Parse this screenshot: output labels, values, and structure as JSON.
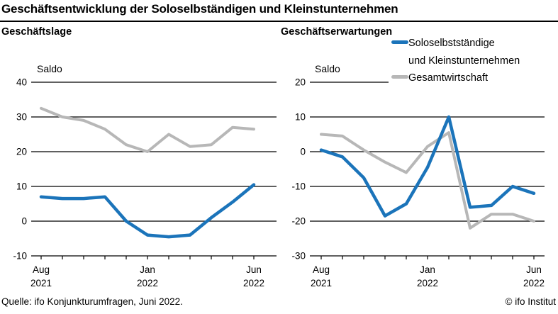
{
  "header": {
    "title": "Geschäftsentwicklung der Soloselbständigen und Kleinstunternehmen"
  },
  "legend": {
    "position": "top-right",
    "items": [
      {
        "line1": "Soloselbstständige",
        "line2": "und Kleinstunternehmen",
        "color": "#1b74ba"
      },
      {
        "line1": "Gesamtwirtschaft",
        "color": "#b7b7b7"
      }
    ]
  },
  "footer": {
    "source": "Quelle: ifo Konjunkturumfragen, Juni 2022.",
    "copyright": "© ifo Institut"
  },
  "chart_data": [
    {
      "type": "line",
      "title": "Geschäftslage",
      "unit_label": "Saldo",
      "grid": true,
      "categories": [
        "Aug 2021",
        "Sep 2021",
        "Okt 2021",
        "Nov 2021",
        "Dez 2021",
        "Jan 2022",
        "Feb 2022",
        "Mär 2022",
        "Apr 2022",
        "Mai 2022",
        "Jun 2022"
      ],
      "x_tick_labels": [
        {
          "index": 0,
          "month": "Aug",
          "year": "2021"
        },
        {
          "index": 5,
          "month": "Jan",
          "year": "2022"
        },
        {
          "index": 10,
          "month": "Jun",
          "year": "2022"
        }
      ],
      "ylim": [
        -10,
        40
      ],
      "yticks": [
        40,
        30,
        20,
        10,
        0,
        -10
      ],
      "series": [
        {
          "name": "Soloselbstständige und Kleinstunternehmen",
          "color": "#1b74ba",
          "width": 4.5,
          "values": [
            7,
            6.5,
            6.5,
            7,
            0,
            -4,
            -4.5,
            -4,
            1,
            5.5,
            10.5
          ]
        },
        {
          "name": "Gesamtwirtschaft",
          "color": "#b7b7b7",
          "width": 4,
          "values": [
            32.5,
            30,
            29,
            26.5,
            22,
            20,
            25,
            21.5,
            22,
            27,
            26.5
          ]
        }
      ]
    },
    {
      "type": "line",
      "title": "Geschäftserwartungen",
      "unit_label": "Saldo",
      "grid": true,
      "categories": [
        "Aug 2021",
        "Sep 2021",
        "Okt 2021",
        "Nov 2021",
        "Dez 2021",
        "Jan 2022",
        "Feb 2022",
        "Mär 2022",
        "Apr 2022",
        "Mai 2022",
        "Jun 2022"
      ],
      "x_tick_labels": [
        {
          "index": 0,
          "month": "Aug",
          "year": "2021"
        },
        {
          "index": 5,
          "month": "Jan",
          "year": "2022"
        },
        {
          "index": 10,
          "month": "Jun",
          "year": "2022"
        }
      ],
      "ylim": [
        -30,
        20
      ],
      "yticks": [
        20,
        10,
        0,
        -10,
        -20,
        -30
      ],
      "series": [
        {
          "name": "Soloselbstständige und Kleinstunternehmen",
          "color": "#1b74ba",
          "width": 4.5,
          "values": [
            0.5,
            -1.5,
            -7.5,
            -18.5,
            -15,
            -4.5,
            10,
            -16,
            -15.5,
            -10,
            -12
          ]
        },
        {
          "name": "Gesamtwirtschaft",
          "color": "#b7b7b7",
          "width": 4,
          "values": [
            5,
            4.5,
            0.5,
            -3,
            -6,
            1.5,
            5.5,
            -22,
            -18,
            -18,
            -20
          ]
        }
      ]
    }
  ]
}
